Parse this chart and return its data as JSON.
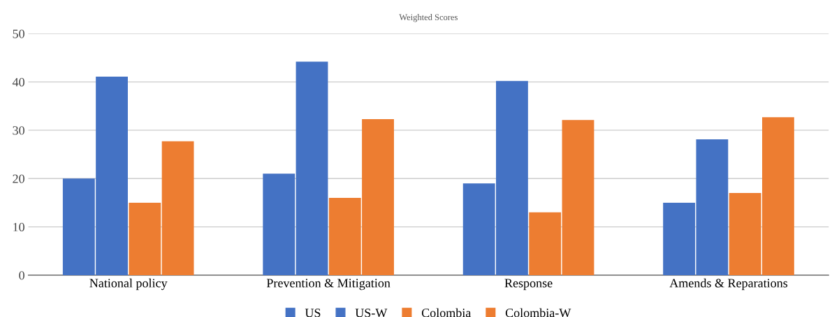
{
  "chart_data": {
    "type": "bar",
    "title": "Weighted Scores",
    "categories": [
      "National policy",
      "Prevention & Mitigation",
      "Response",
      "Amends & Reparations"
    ],
    "series": [
      {
        "name": "US",
        "color": "#4472c4",
        "values": [
          20,
          21,
          19,
          15
        ]
      },
      {
        "name": "US-W",
        "color": "#4472c4",
        "values": [
          41.1,
          44.2,
          40.2,
          28.1
        ]
      },
      {
        "name": "Colombia",
        "color": "#ed7d31",
        "values": [
          15,
          16,
          13,
          17
        ]
      },
      {
        "name": "Colombia-W",
        "color": "#ed7d31",
        "values": [
          27.7,
          32.3,
          32.1,
          32.7
        ]
      }
    ],
    "ylim": [
      0,
      50
    ],
    "yticks": [
      0,
      10,
      20,
      30,
      40,
      50
    ],
    "grid": "y",
    "legend": "bottom"
  }
}
